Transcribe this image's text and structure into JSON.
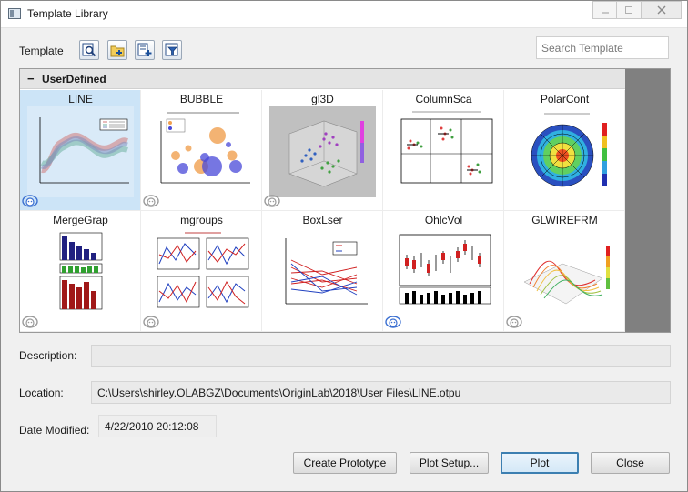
{
  "window": {
    "title": "Template Library"
  },
  "toolbar": {
    "template_label": "Template",
    "tools": [
      "preview-zoom-icon",
      "folder-add-icon",
      "new-template-icon",
      "filter-icon"
    ]
  },
  "search": {
    "placeholder": "Search Template",
    "value": ""
  },
  "gallery": {
    "group": {
      "toggle": "−",
      "title": "UserDefined"
    },
    "tiles": [
      {
        "name": "LINE",
        "thumb": "line-chart-thumbnail",
        "selected": true,
        "badge": "blue"
      },
      {
        "name": "BUBBLE",
        "thumb": "bubble-chart-thumbnail",
        "badge": "gray"
      },
      {
        "name": "gl3D",
        "thumb": "3d-scatter-thumbnail",
        "badge": "gray"
      },
      {
        "name": "ColumnSca",
        "thumb": "column-scatter-thumbnail",
        "badge": "none"
      },
      {
        "name": "PolarCont",
        "thumb": "polar-contour-thumbnail",
        "badge": "none"
      },
      {
        "name": "MergeGrap",
        "thumb": "merged-graph-thumbnail",
        "badge": "gray"
      },
      {
        "name": "mgroups",
        "thumb": "multi-panel-thumbnail",
        "badge": "gray"
      },
      {
        "name": "BoxLser",
        "thumb": "box-line-series-thumbnail",
        "badge": "none"
      },
      {
        "name": "OhlcVol",
        "thumb": "ohlc-volume-thumbnail",
        "badge": "blue"
      },
      {
        "name": "GLWIREFRM",
        "thumb": "3d-wireframe-thumbnail",
        "badge": "gray"
      }
    ]
  },
  "description": {
    "label": "Description:",
    "value": ""
  },
  "location": {
    "label": "Location:",
    "value": "C:\\Users\\shirley.OLABGZ\\Documents\\OriginLab\\2018\\User Files\\LINE.otpu"
  },
  "date_modified": {
    "label": "Date Modified:",
    "value": "4/22/2010 20:12:08"
  },
  "buttons": {
    "create_prototype": "Create Prototype",
    "plot_setup": "Plot Setup...",
    "plot": "Plot",
    "close": "Close"
  },
  "colors": {
    "accent": "#3c7fb1",
    "selected_tile": "#cce4f7",
    "scroll_track": "#808080"
  }
}
